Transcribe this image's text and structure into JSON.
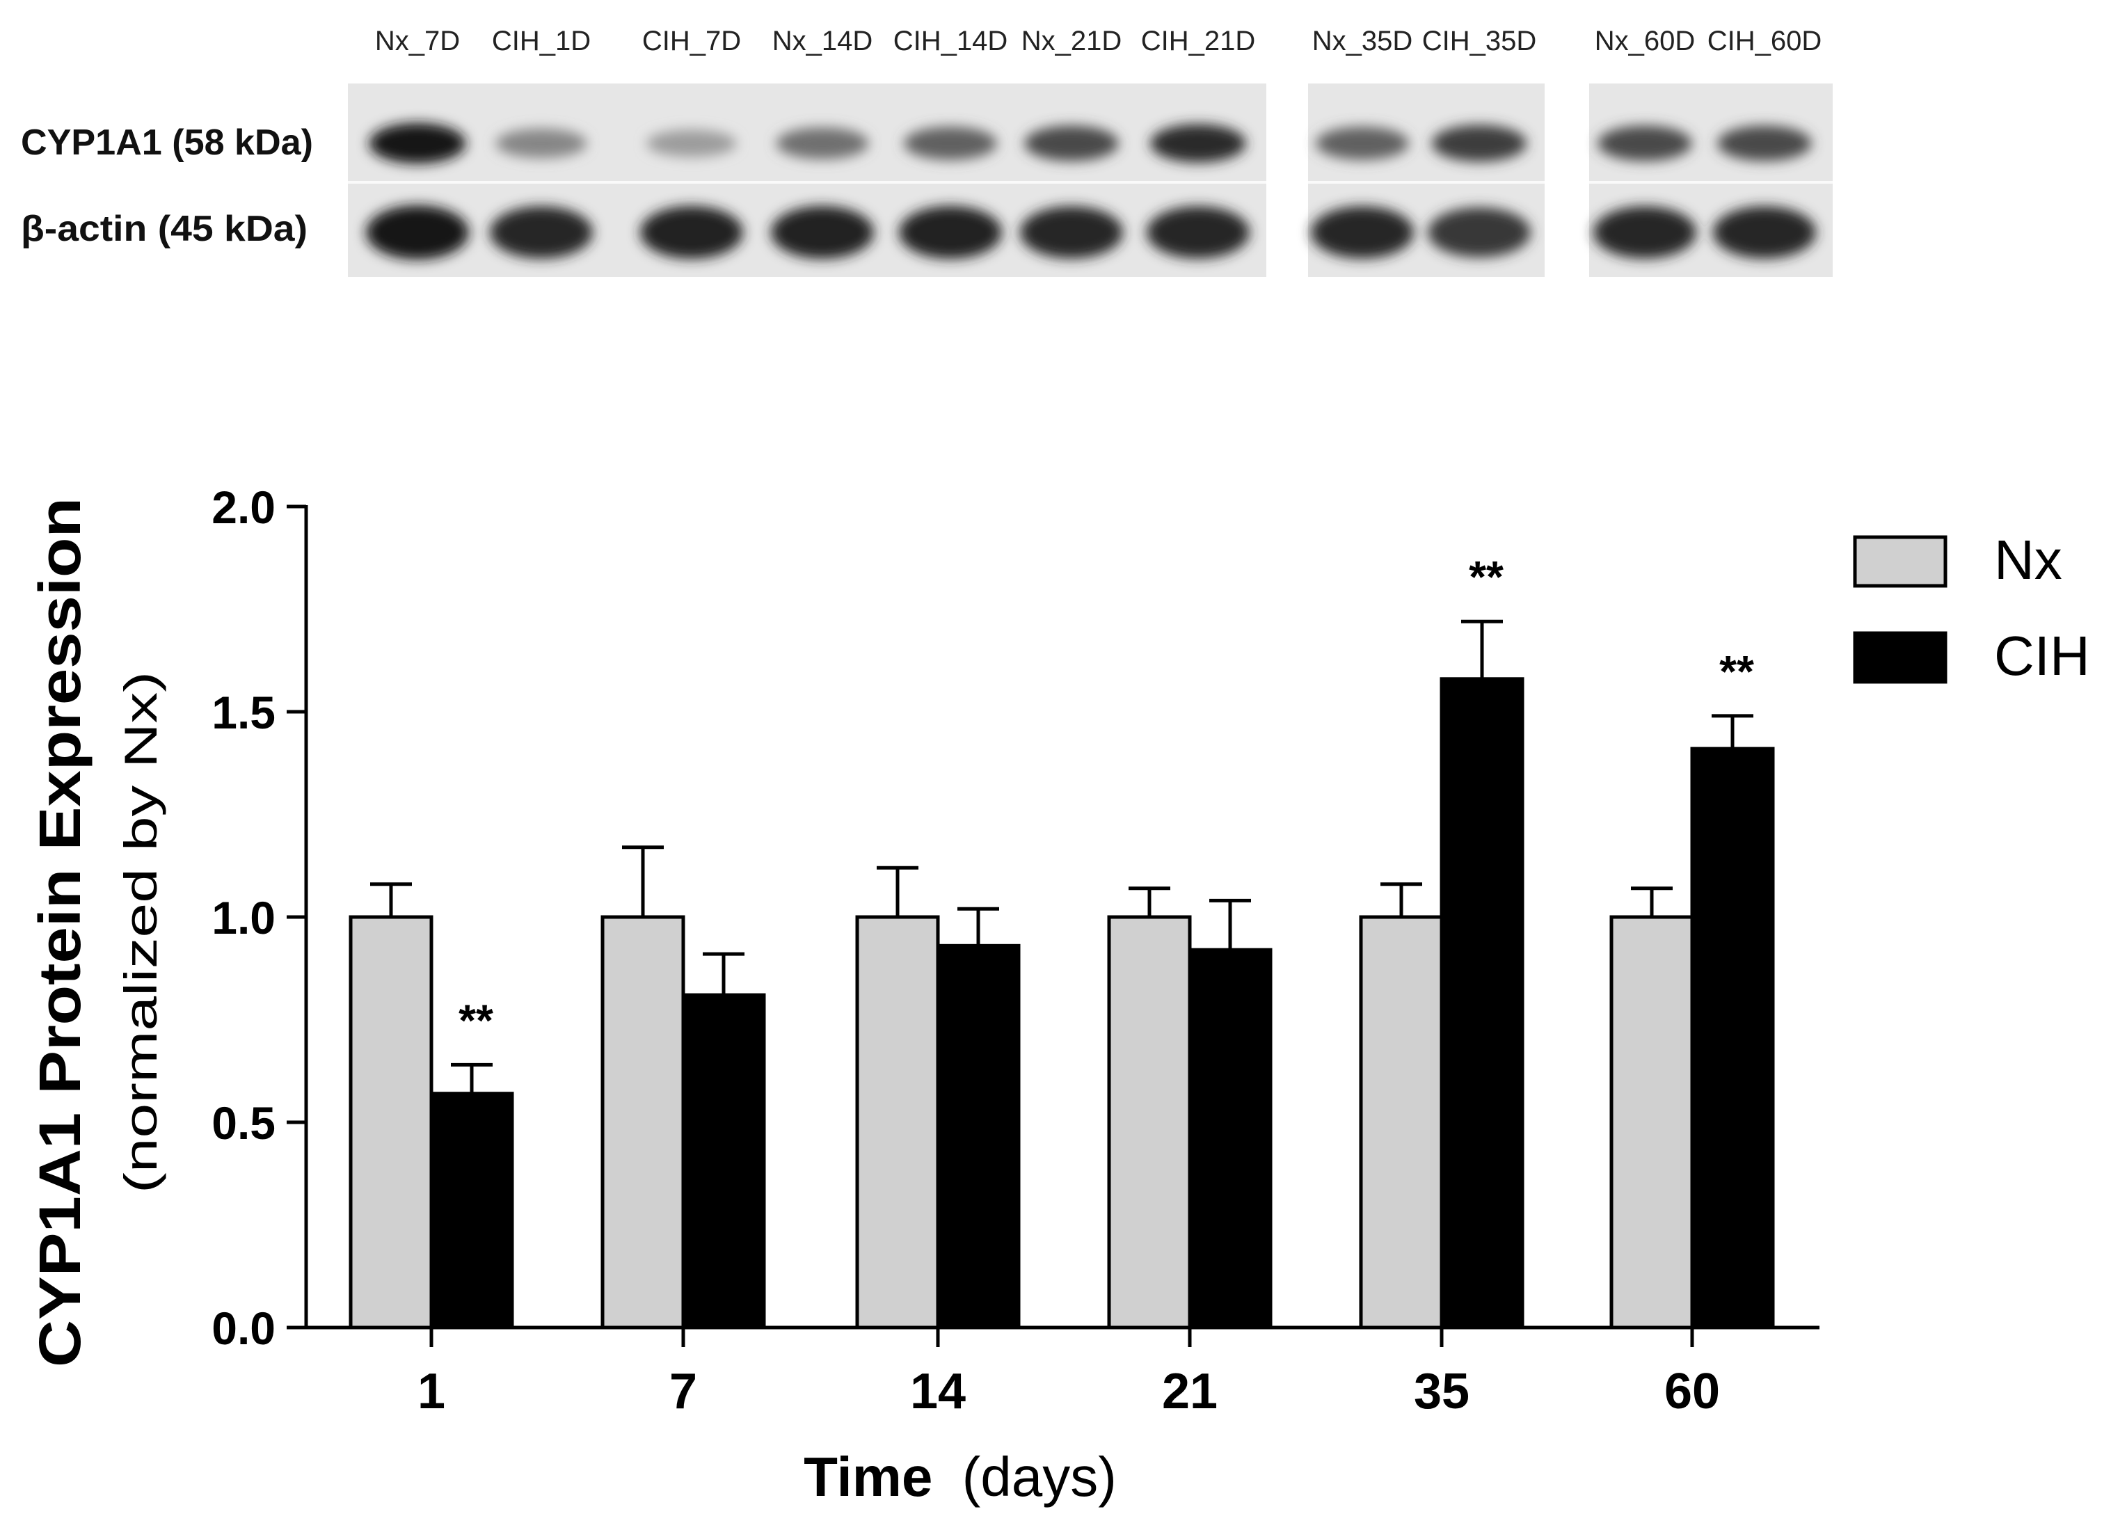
{
  "blot": {
    "lane_labels": [
      "Nx_7D",
      "CIH_1D",
      "CIH_7D",
      "Nx_14D",
      "CIH_14D",
      "Nx_21D",
      "CIH_21D",
      "Nx_35D",
      "CIH_35D",
      "Nx_60D",
      "CIH_60D"
    ],
    "row_labels": [
      "CYP1A1 (58 kDa)",
      "β-actin (45 kDa)"
    ],
    "cyp_band_intensity": [
      0.95,
      0.45,
      0.35,
      0.55,
      0.62,
      0.72,
      0.85,
      0.62,
      0.78,
      0.72,
      0.72
    ],
    "actin_band_intensity": [
      0.95,
      0.88,
      0.9,
      0.9,
      0.9,
      0.88,
      0.88,
      0.88,
      0.8,
      0.88,
      0.88
    ]
  },
  "chart_data": {
    "type": "bar",
    "ylabel_main": "CYP1A1 Protein Expression",
    "ylabel_sub": "(normalized by Nx)",
    "xlabel_main": "Time",
    "xlabel_sub": "(days)",
    "categories": [
      "1",
      "7",
      "14",
      "21",
      "35",
      "60"
    ],
    "ylim": [
      0,
      2.0
    ],
    "yticks": [
      "0.0",
      "0.5",
      "1.0",
      "1.5",
      "2.0"
    ],
    "ytick_values": [
      0,
      0.5,
      1.0,
      1.5,
      2.0
    ],
    "series": [
      {
        "name": "Nx",
        "color": "#d0d0d0",
        "values": [
          1.0,
          1.0,
          1.0,
          1.0,
          1.0,
          1.0
        ],
        "errors": [
          0.08,
          0.17,
          0.12,
          0.07,
          0.08,
          0.07
        ]
      },
      {
        "name": "CIH",
        "color": "#000000",
        "values": [
          0.57,
          0.81,
          0.93,
          0.92,
          1.58,
          1.41
        ],
        "errors": [
          0.07,
          0.1,
          0.09,
          0.12,
          0.14,
          0.08
        ]
      }
    ],
    "significance": [
      "**",
      "",
      "",
      "",
      "**",
      "**"
    ],
    "legend_position": "top-right"
  }
}
